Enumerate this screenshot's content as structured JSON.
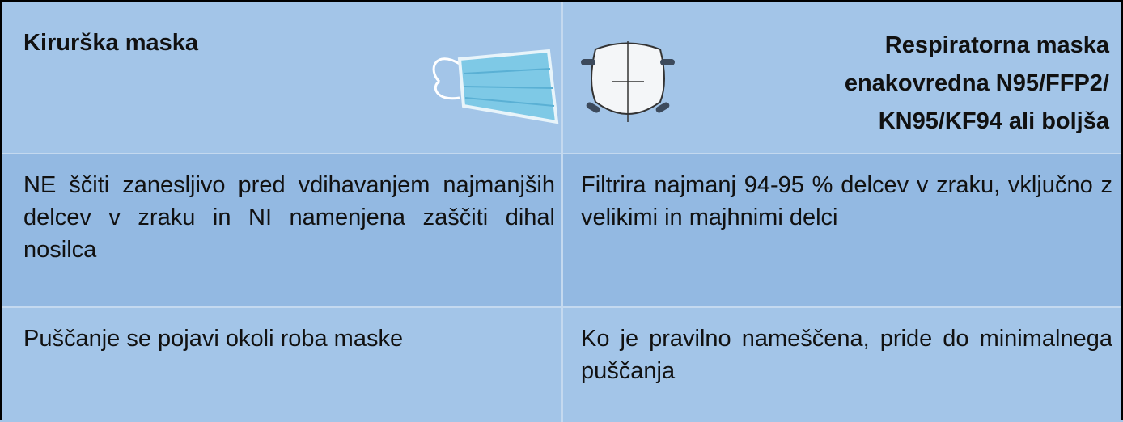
{
  "table": {
    "header": [
      "Kirurška maska",
      [
        "Respiratorna maska",
        "enakovredna N95/FFP2/",
        "KN95/KF94 ali boljša"
      ]
    ],
    "rows": [
      [
        "NE ščiti zanesljivo pred vdihavanjem najmanjših delcev v zraku in NI namenjena zaščiti dihal nosilca",
        "Filtrira najmanj 94-95 % delcev v zraku, vključno z velikimi in majhnimi delci"
      ],
      [
        "Puščanje se pojavi okoli roba maske",
        "Ko je pravilno nameščena, pride do minimalnega puščanja"
      ]
    ]
  }
}
